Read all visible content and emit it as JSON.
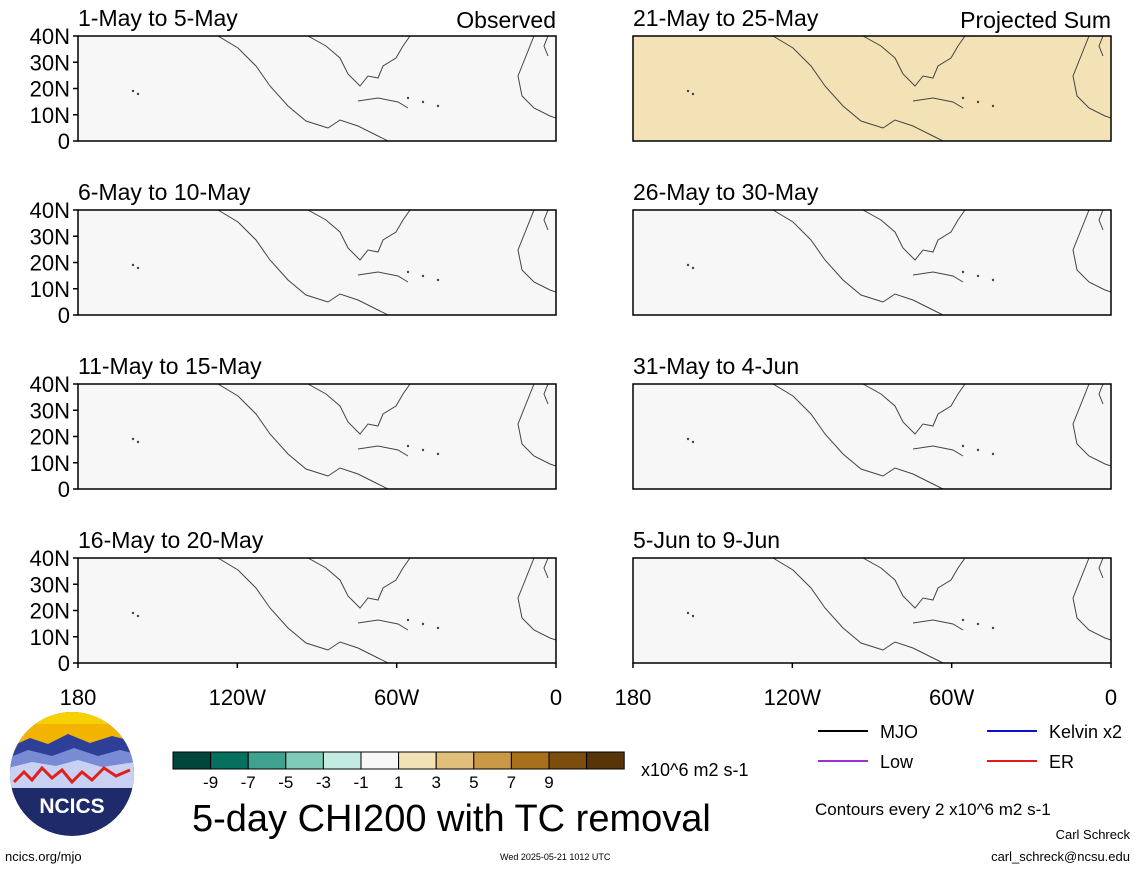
{
  "panels": [
    {
      "title": "1-May to 5-May",
      "tag": "Observed"
    },
    {
      "title": "6-May to 10-May",
      "tag": ""
    },
    {
      "title": "11-May to 15-May",
      "tag": ""
    },
    {
      "title": "16-May to 20-May",
      "tag": ""
    },
    {
      "title": "21-May to 25-May",
      "tag": "Projected Sum"
    },
    {
      "title": "26-May to 30-May",
      "tag": ""
    },
    {
      "title": "31-May to 4-Jun",
      "tag": ""
    },
    {
      "title": "5-Jun to 9-Jun",
      "tag": ""
    }
  ],
  "lat_ticks": [
    "40N",
    "30N",
    "20N",
    "10N",
    "0"
  ],
  "lon_ticks": [
    "180",
    "120W",
    "60W",
    "0"
  ],
  "colorbar": {
    "tick_labels": [
      "-9",
      "-7",
      "-5",
      "-3",
      "-1",
      "1",
      "3",
      "5",
      "7",
      "9"
    ],
    "colors": [
      "#00463a",
      "#06705f",
      "#3ea28f",
      "#7fcab8",
      "#c4ebe2",
      "#f7f7f7",
      "#f2e2b6",
      "#dfbf7a",
      "#c99945",
      "#a8701c",
      "#7b4e0e",
      "#573508"
    ],
    "units": "x10^6 m2 s-1"
  },
  "legend": [
    {
      "label": "MJO",
      "color": "#000000"
    },
    {
      "label": "Kelvin x2",
      "color": "#1010d0"
    },
    {
      "label": "Low",
      "color": "#9b30d9"
    },
    {
      "label": "ER",
      "color": "#e31a1c"
    }
  ],
  "footer": {
    "title": "5-day CHI200 with TC removal",
    "contour_note": "Contours every 2 x10^6 m2 s-1",
    "author": "Carl Schreck",
    "email": "carl_schreck@ncsu.edu",
    "site": "ncics.org/mjo",
    "timestamp": "Wed 2025-05-21 1012 UTC",
    "logo_text": "NCICS"
  }
}
